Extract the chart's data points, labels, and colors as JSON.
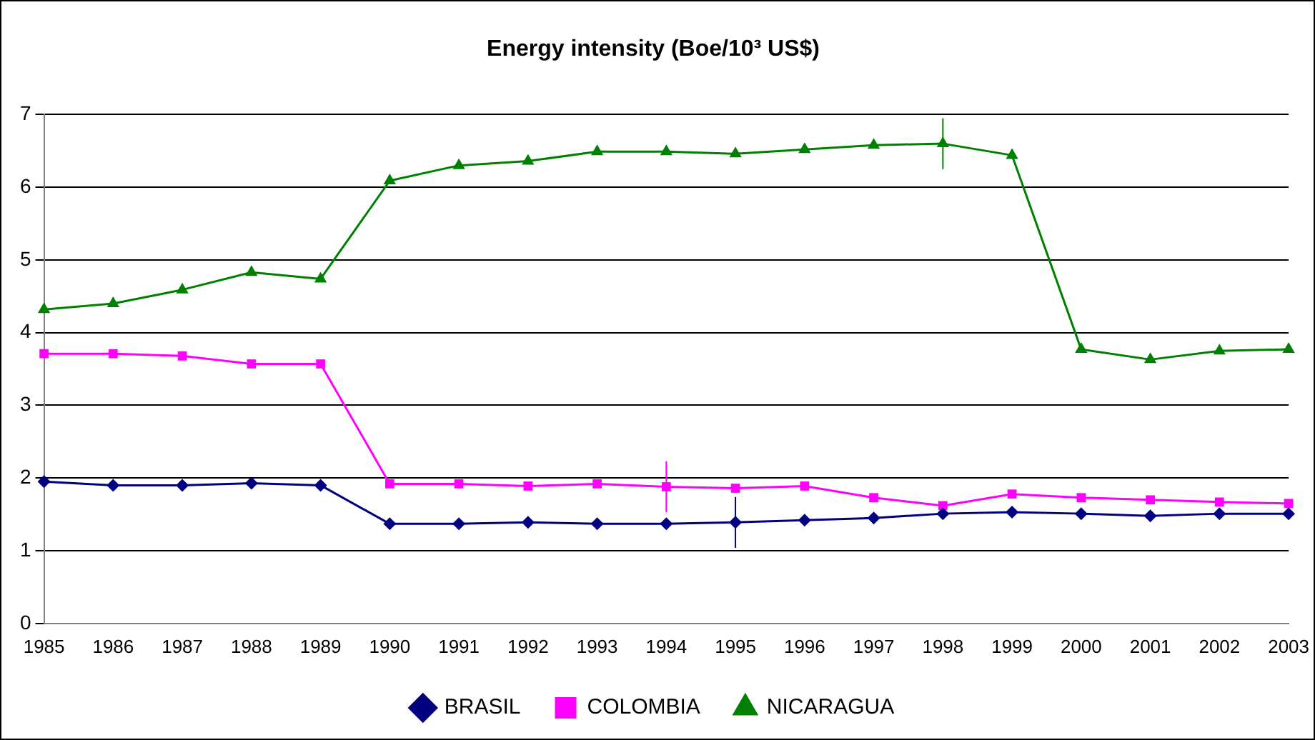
{
  "chart_data": {
    "type": "line",
    "title": "Energy intensity (Boe/10³ US$)",
    "categories": [
      "1985",
      "1986",
      "1987",
      "1988",
      "1989",
      "1990",
      "1991",
      "1992",
      "1993",
      "1994",
      "1995",
      "1996",
      "1997",
      "1998",
      "1999",
      "2000",
      "2001",
      "2002",
      "2003"
    ],
    "series": [
      {
        "name": "BRASIL",
        "color": "#000080",
        "marker": "diamond",
        "values": [
          1.95,
          1.9,
          1.9,
          1.93,
          1.9,
          1.37,
          1.37,
          1.39,
          1.37,
          1.37,
          1.39,
          1.42,
          1.45,
          1.51,
          1.53,
          1.51,
          1.48,
          1.51,
          1.51
        ],
        "errors": [
          null,
          null,
          null,
          null,
          null,
          null,
          null,
          null,
          null,
          null,
          0.35,
          null,
          null,
          null,
          null,
          null,
          null,
          null,
          null
        ]
      },
      {
        "name": "COLOMBIA",
        "color": "#ff00ff",
        "marker": "square",
        "values": [
          3.71,
          3.71,
          3.68,
          3.57,
          3.57,
          1.92,
          1.92,
          1.89,
          1.92,
          1.88,
          1.86,
          1.89,
          1.73,
          1.62,
          1.78,
          1.73,
          1.7,
          1.67,
          1.65
        ],
        "errors": [
          null,
          null,
          null,
          null,
          null,
          null,
          null,
          null,
          null,
          0.35,
          null,
          null,
          null,
          null,
          null,
          null,
          null,
          null,
          null
        ]
      },
      {
        "name": "NICARAGUA",
        "color": "#008000",
        "marker": "triangle",
        "values": [
          4.32,
          4.4,
          4.59,
          4.83,
          4.74,
          6.09,
          6.3,
          6.36,
          6.49,
          6.49,
          6.46,
          6.52,
          6.58,
          6.6,
          6.44,
          3.77,
          3.63,
          3.75,
          3.77
        ],
        "errors": [
          null,
          null,
          null,
          null,
          null,
          null,
          null,
          null,
          null,
          null,
          null,
          null,
          null,
          0.35,
          null,
          null,
          null,
          null,
          null
        ]
      }
    ],
    "ylim": [
      0,
      7
    ],
    "yticks": [
      0,
      1,
      2,
      3,
      4,
      5,
      6,
      7
    ],
    "grid": "y",
    "legend": "bottom",
    "line_style": "solid"
  }
}
